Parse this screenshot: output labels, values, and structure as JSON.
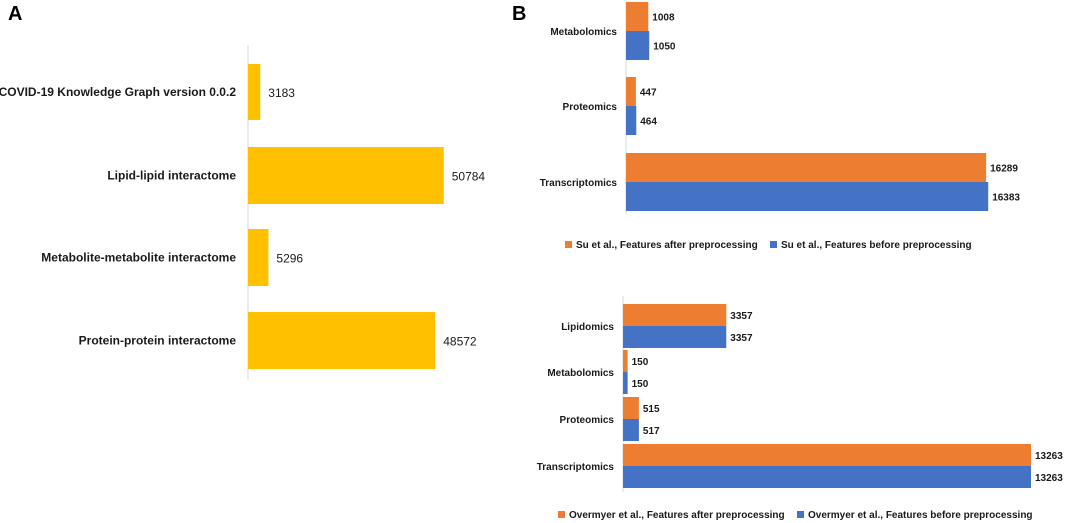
{
  "panels": {
    "a_letter": "A",
    "b_letter": "B"
  },
  "colors": {
    "yellow": "#FFC000",
    "orange": "#ED7D31",
    "blue": "#4472C4"
  },
  "chart_data": [
    {
      "id": "A",
      "type": "bar",
      "orientation": "horizontal",
      "categories": [
        "COVID-19 Knowledge Graph version 0.0.2",
        "Lipid-lipid interactome",
        "Metabolite-metabolite interactome",
        "Protein-protein interactome"
      ],
      "values": [
        3183,
        50784,
        5296,
        48572
      ],
      "value_labels": [
        "3183",
        "50784",
        "5296",
        "48572"
      ],
      "xlim": [
        0,
        55000
      ],
      "title": "",
      "xlabel": "",
      "ylabel": ""
    },
    {
      "id": "B1",
      "type": "bar",
      "orientation": "horizontal",
      "categories": [
        "Metabolomics",
        "Proteomics",
        "Transcriptomics"
      ],
      "series": [
        {
          "name": "Su et al., Features after preprocessing",
          "values": [
            1008,
            447,
            16289
          ],
          "labels": [
            "1008",
            "447",
            "16289"
          ]
        },
        {
          "name": "Su et al., Features before preprocessing",
          "values": [
            1050,
            464,
            16383
          ],
          "labels": [
            "1050",
            "464",
            "16383"
          ]
        }
      ],
      "xlim": [
        0,
        18500
      ],
      "legend": "bottom"
    },
    {
      "id": "B2",
      "type": "bar",
      "orientation": "horizontal",
      "categories": [
        "Lipidomics",
        "Metabolomics",
        "Proteomics",
        "Transcriptomics"
      ],
      "series": [
        {
          "name": "Overmyer et al., Features after preprocessing",
          "values": [
            3357,
            150,
            515,
            13263
          ],
          "labels": [
            "3357",
            "150",
            "515",
            "13263"
          ]
        },
        {
          "name": "Overmyer et al., Features before preprocessing",
          "values": [
            3357,
            150,
            517,
            13263
          ],
          "labels": [
            "3357",
            "150",
            "517",
            "13263"
          ]
        }
      ],
      "xlim": [
        0,
        13263
      ],
      "legend": "bottom"
    }
  ]
}
